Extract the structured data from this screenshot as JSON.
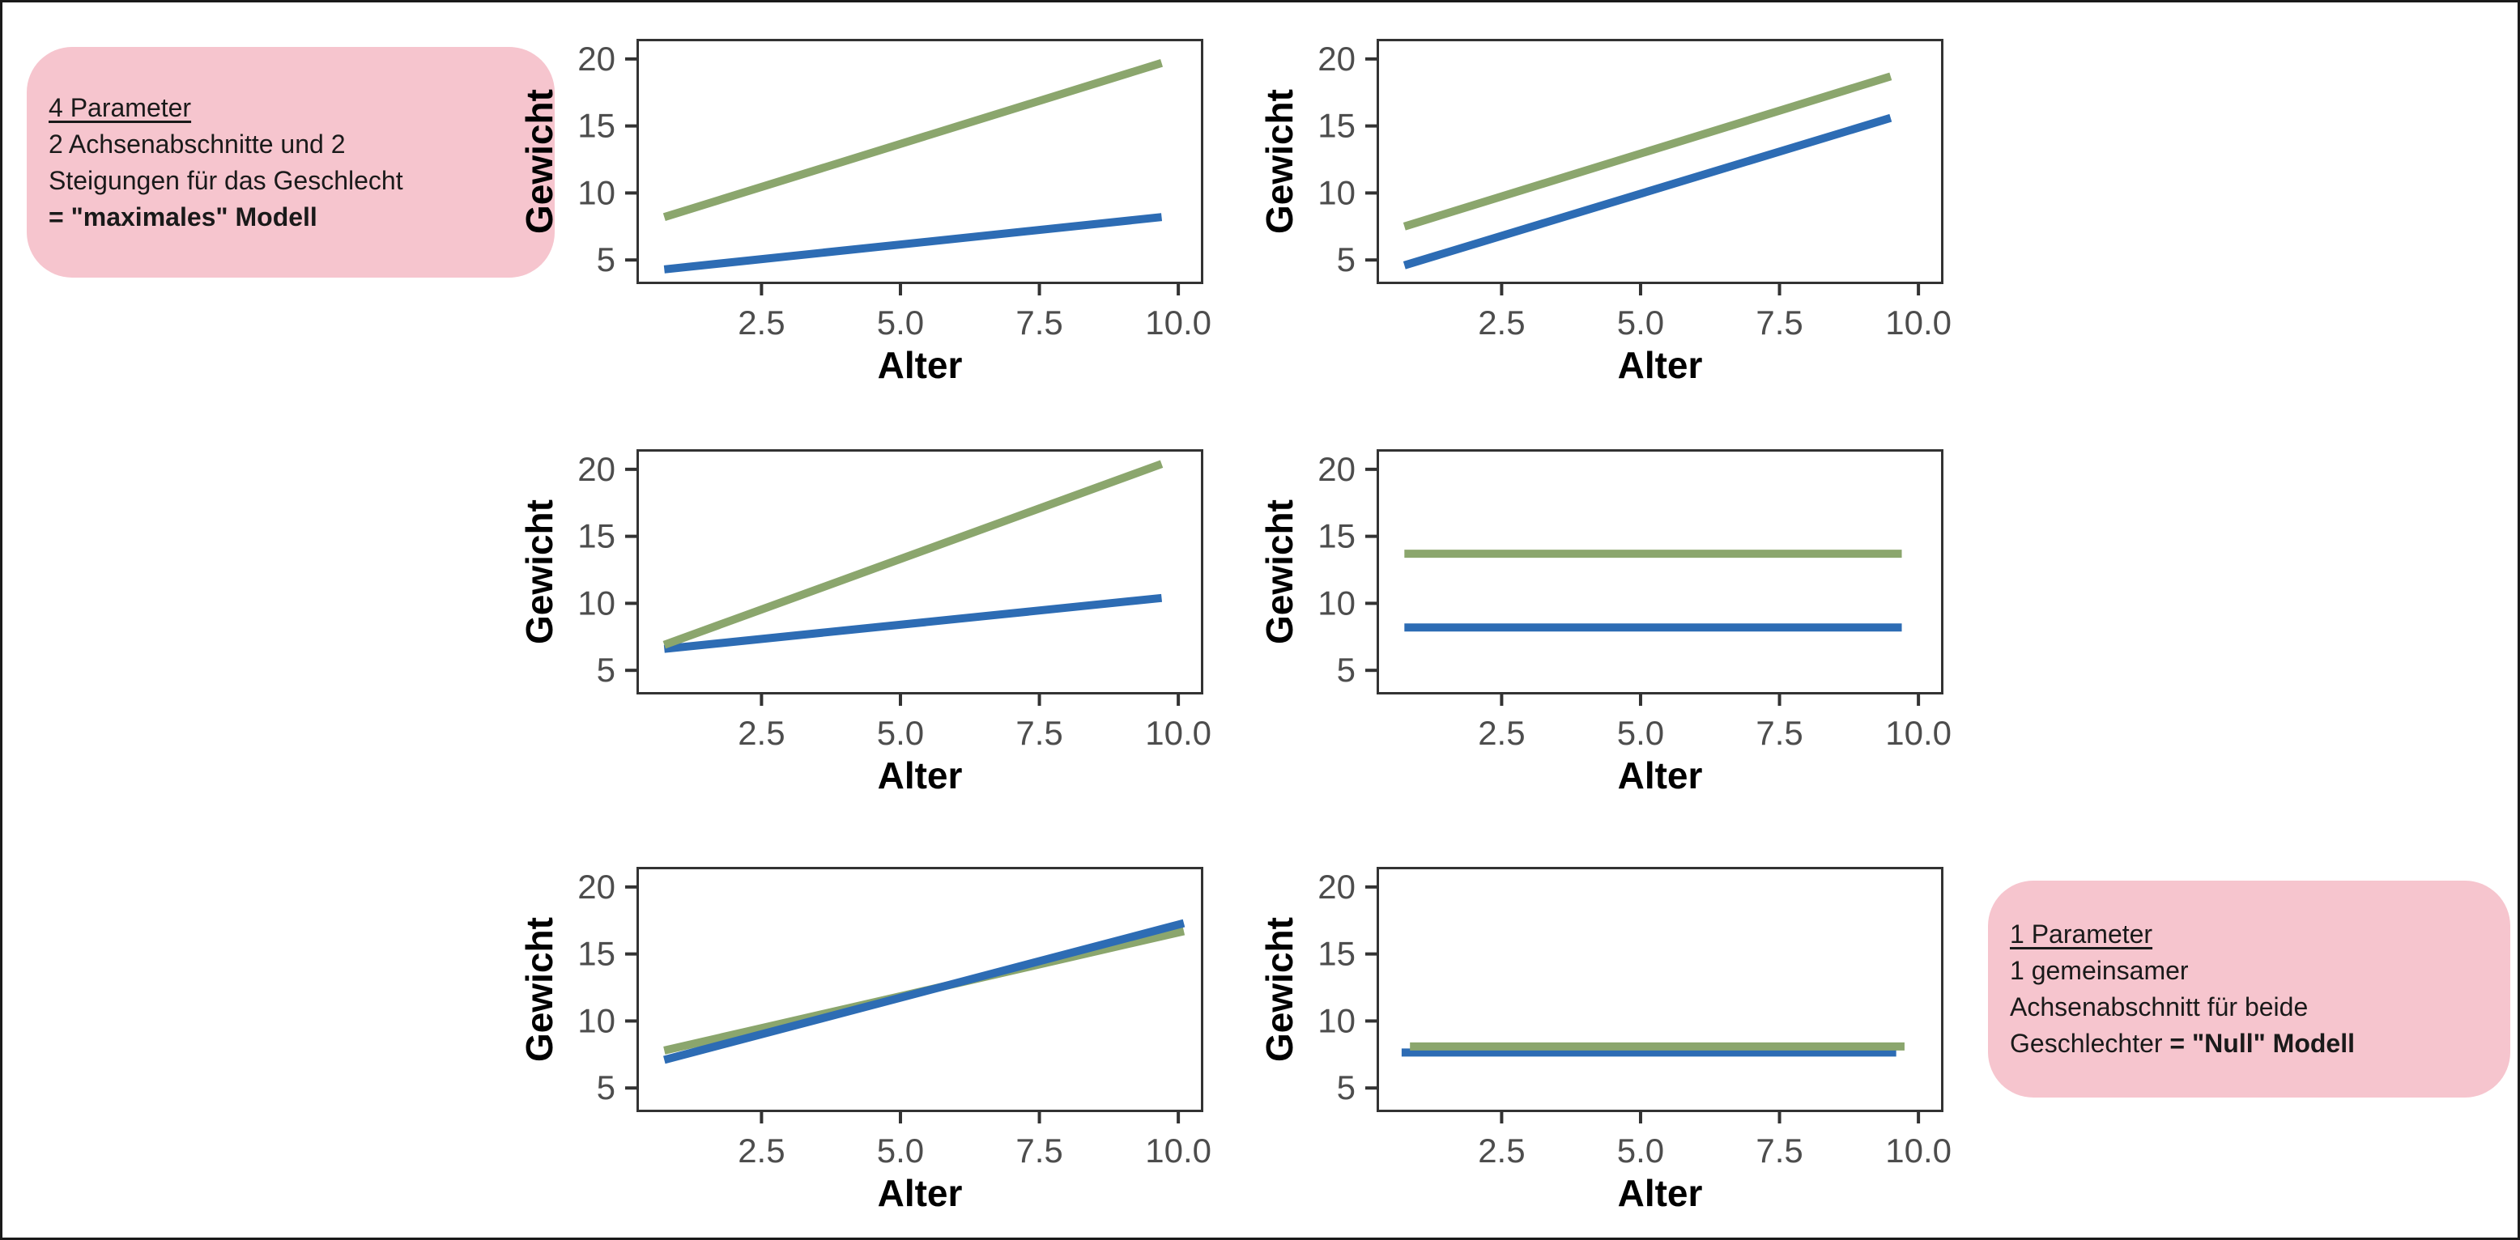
{
  "figure": {
    "background": "#ffffff",
    "outer_border": "#1a1a1a",
    "description_visible_text_only": true
  },
  "colors": {
    "green": "#8ba66d",
    "blue": "#2d6cb4",
    "pink": "#f6c5ce",
    "panel_border": "#333333",
    "tick_mark": "#333333",
    "tick_text": "#4d4d4d",
    "text": "#1a1a1a"
  },
  "annotations": [
    {
      "id": "top-left",
      "lines": [
        [
          {
            "text": "4 Parameter",
            "underline": true
          }
        ],
        [
          {
            "text": "2 Achsenabschnitte und 2"
          }
        ],
        [
          {
            "text": "Steigungen für das Geschlecht"
          }
        ],
        [
          {
            "text": "= \"maximales\" Modell",
            "bold": true
          }
        ]
      ]
    },
    {
      "id": "bottom-right",
      "lines": [
        [
          {
            "text": "1 Parameter",
            "underline": true
          }
        ],
        [
          {
            "text": "1 gemeinsamer"
          }
        ],
        [
          {
            "text": "Achsenabschnitt für beide"
          }
        ],
        [
          {
            "text": "Geschlechter "
          },
          {
            "text": "= \"Null\" Modell",
            "bold": true
          }
        ]
      ]
    }
  ],
  "chart_data": [
    {
      "type": "line",
      "id": "two-intercepts-two-slopes",
      "row": 0,
      "col": 0,
      "xlabel": "Alter",
      "ylabel": "Gewicht",
      "xlim": [
        0.25,
        10.45
      ],
      "ylim": [
        3.2,
        21.5
      ],
      "x_ticks": [
        2.5,
        5.0,
        7.5,
        10.0
      ],
      "x_tick_labels": [
        "2.5",
        "5.0",
        "7.5",
        "10.0"
      ],
      "y_ticks": [
        5,
        10,
        15,
        20
      ],
      "y_tick_labels": [
        "5",
        "10",
        "15",
        "20"
      ],
      "grid": false,
      "legend": false,
      "series": [
        {
          "name": "blue-line",
          "color_key": "blue",
          "points": [
            [
              0.75,
              4.3
            ],
            [
              9.7,
              8.2
            ]
          ]
        },
        {
          "name": "green-line",
          "color_key": "green",
          "points": [
            [
              0.75,
              8.2
            ],
            [
              9.7,
              19.7
            ]
          ]
        }
      ]
    },
    {
      "type": "line",
      "id": "two-intercepts-common-slope",
      "row": 0,
      "col": 1,
      "xlabel": "Alter",
      "ylabel": "Gewicht",
      "xlim": [
        0.25,
        10.45
      ],
      "ylim": [
        3.2,
        21.5
      ],
      "x_ticks": [
        2.5,
        5.0,
        7.5,
        10.0
      ],
      "x_tick_labels": [
        "2.5",
        "5.0",
        "7.5",
        "10.0"
      ],
      "y_ticks": [
        5,
        10,
        15,
        20
      ],
      "y_tick_labels": [
        "5",
        "10",
        "15",
        "20"
      ],
      "grid": false,
      "legend": false,
      "series": [
        {
          "name": "blue-line",
          "color_key": "blue",
          "points": [
            [
              0.75,
              4.6
            ],
            [
              9.5,
              15.6
            ]
          ]
        },
        {
          "name": "green-line",
          "color_key": "green",
          "points": [
            [
              0.75,
              7.5
            ],
            [
              9.5,
              18.7
            ]
          ]
        }
      ]
    },
    {
      "type": "line",
      "id": "common-intercept-two-slopes",
      "row": 1,
      "col": 0,
      "xlabel": "Alter",
      "ylabel": "Gewicht",
      "xlim": [
        0.25,
        10.45
      ],
      "ylim": [
        3.2,
        21.5
      ],
      "x_ticks": [
        2.5,
        5.0,
        7.5,
        10.0
      ],
      "x_tick_labels": [
        "2.5",
        "5.0",
        "7.5",
        "10.0"
      ],
      "y_ticks": [
        5,
        10,
        15,
        20
      ],
      "y_tick_labels": [
        "5",
        "10",
        "15",
        "20"
      ],
      "grid": false,
      "legend": false,
      "series": [
        {
          "name": "blue-line",
          "color_key": "blue",
          "points": [
            [
              0.75,
              6.6
            ],
            [
              9.7,
              10.4
            ]
          ]
        },
        {
          "name": "green-line",
          "color_key": "green",
          "points": [
            [
              0.75,
              6.9
            ],
            [
              9.7,
              20.4
            ]
          ]
        }
      ]
    },
    {
      "type": "line",
      "id": "two-intercepts-zero-slope",
      "row": 1,
      "col": 1,
      "xlabel": "Alter",
      "ylabel": "Gewicht",
      "xlim": [
        0.25,
        10.45
      ],
      "ylim": [
        3.2,
        21.5
      ],
      "x_ticks": [
        2.5,
        5.0,
        7.5,
        10.0
      ],
      "x_tick_labels": [
        "2.5",
        "5.0",
        "7.5",
        "10.0"
      ],
      "y_ticks": [
        5,
        10,
        15,
        20
      ],
      "y_tick_labels": [
        "5",
        "10",
        "15",
        "20"
      ],
      "grid": false,
      "legend": false,
      "series": [
        {
          "name": "blue-line",
          "color_key": "blue",
          "points": [
            [
              0.75,
              8.2
            ],
            [
              9.7,
              8.2
            ]
          ]
        },
        {
          "name": "green-line",
          "color_key": "green",
          "points": [
            [
              0.75,
              13.7
            ],
            [
              9.7,
              13.7
            ]
          ]
        }
      ]
    },
    {
      "type": "line",
      "id": "common-intercept-common-slope",
      "row": 2,
      "col": 0,
      "xlabel": "Alter",
      "ylabel": "Gewicht",
      "xlim": [
        0.25,
        10.45
      ],
      "ylim": [
        3.2,
        21.5
      ],
      "x_ticks": [
        2.5,
        5.0,
        7.5,
        10.0
      ],
      "x_tick_labels": [
        "2.5",
        "5.0",
        "7.5",
        "10.0"
      ],
      "y_ticks": [
        5,
        10,
        15,
        20
      ],
      "y_tick_labels": [
        "5",
        "10",
        "15",
        "20"
      ],
      "grid": false,
      "legend": false,
      "series": [
        {
          "name": "green-line",
          "color_key": "green",
          "points": [
            [
              0.75,
              7.8
            ],
            [
              10.1,
              16.7
            ]
          ]
        },
        {
          "name": "blue-line",
          "color_key": "blue",
          "points": [
            [
              0.75,
              7.1
            ],
            [
              10.1,
              17.3
            ]
          ]
        }
      ]
    },
    {
      "type": "line",
      "id": "null-model-common-mean",
      "row": 2,
      "col": 1,
      "xlabel": "Alter",
      "ylabel": "Gewicht",
      "xlim": [
        0.25,
        10.45
      ],
      "ylim": [
        3.2,
        21.5
      ],
      "x_ticks": [
        2.5,
        5.0,
        7.5,
        10.0
      ],
      "x_tick_labels": [
        "2.5",
        "5.0",
        "7.5",
        "10.0"
      ],
      "y_ticks": [
        5,
        10,
        15,
        20
      ],
      "y_tick_labels": [
        "5",
        "10",
        "15",
        "20"
      ],
      "grid": false,
      "legend": false,
      "series": [
        {
          "name": "blue-line",
          "color_key": "blue",
          "points": [
            [
              0.7,
              7.65
            ],
            [
              9.6,
              7.65
            ]
          ]
        },
        {
          "name": "green-line",
          "color_key": "green",
          "points": [
            [
              0.85,
              8.1
            ],
            [
              9.75,
              8.1
            ]
          ]
        }
      ]
    }
  ]
}
